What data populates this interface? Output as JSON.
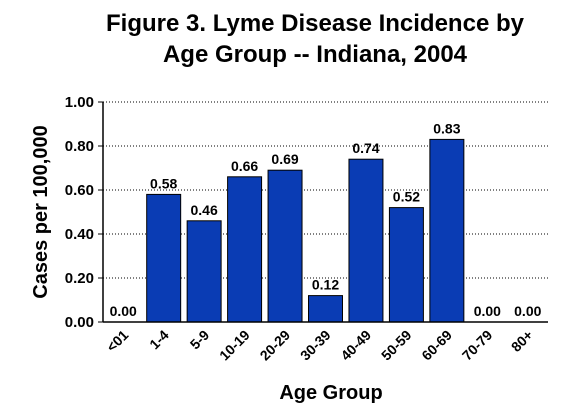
{
  "chart_data": {
    "type": "bar",
    "title_lines": [
      "Figure 3. Lyme Disease Incidence by",
      "Age Group -- Indiana, 2004"
    ],
    "xlabel": "Age Group",
    "ylabel": "Cases per 100,000",
    "categories": [
      "<01",
      "1-4",
      "5-9",
      "10-19",
      "20-29",
      "30-39",
      "40-49",
      "50-59",
      "60-69",
      "70-79",
      "80+"
    ],
    "values": [
      0.0,
      0.58,
      0.46,
      0.66,
      0.69,
      0.12,
      0.74,
      0.52,
      0.83,
      0.0,
      0.0
    ],
    "data_labels": [
      "0.00",
      "0.58",
      "0.46",
      "0.66",
      "0.69",
      "0.12",
      "0.74",
      "0.52",
      "0.83",
      "0.00",
      "0.00"
    ],
    "ylim": [
      0,
      1.0
    ],
    "yticks": [
      0.0,
      0.2,
      0.4,
      0.6,
      0.8,
      1.0
    ],
    "ytick_labels": [
      "0.00",
      "0.20",
      "0.40",
      "0.60",
      "0.80",
      "1.00"
    ],
    "grid": "horizontal-dotted",
    "bar_color": "#0A3CB4",
    "legend": "none"
  }
}
